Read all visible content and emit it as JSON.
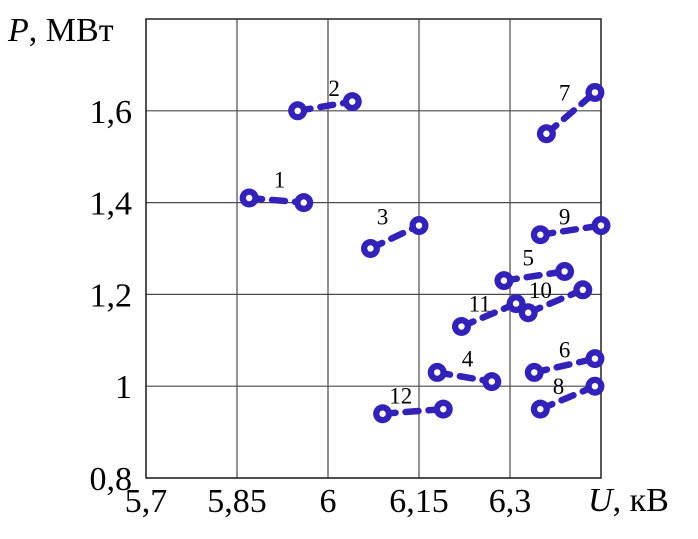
{
  "chart_data": {
    "type": "scatter",
    "title": "",
    "xlabel_var": "U",
    "xlabel_unit": ", кВ",
    "ylabel_var": "P",
    "ylabel_unit": ", МВт",
    "xlim": [
      5.7,
      6.45
    ],
    "ylim": [
      0.8,
      1.8
    ],
    "grid": true,
    "x_ticks": [
      {
        "value": 5.7,
        "label": "5,7"
      },
      {
        "value": 5.85,
        "label": "5,85"
      },
      {
        "value": 6.0,
        "label": "6"
      },
      {
        "value": 6.15,
        "label": "6,15"
      },
      {
        "value": 6.3,
        "label": "6,3"
      }
    ],
    "y_ticks": [
      {
        "value": 0.8,
        "label": "0,8"
      },
      {
        "value": 1.0,
        "label": "1"
      },
      {
        "value": 1.2,
        "label": "1,2"
      },
      {
        "value": 1.4,
        "label": "1,4"
      },
      {
        "value": 1.6,
        "label": "1,6"
      }
    ],
    "series": [
      {
        "label": "1",
        "points": [
          [
            5.87,
            1.41
          ],
          [
            5.96,
            1.4
          ]
        ],
        "label_pos": [
          5.92,
          1.45
        ]
      },
      {
        "label": "2",
        "points": [
          [
            5.95,
            1.6
          ],
          [
            6.04,
            1.62
          ]
        ],
        "label_pos": [
          6.01,
          1.65
        ]
      },
      {
        "label": "3",
        "points": [
          [
            6.07,
            1.3
          ],
          [
            6.15,
            1.35
          ]
        ],
        "label_pos": [
          6.09,
          1.37
        ]
      },
      {
        "label": "4",
        "points": [
          [
            6.18,
            1.03
          ],
          [
            6.27,
            1.01
          ]
        ],
        "label_pos": [
          6.23,
          1.06
        ]
      },
      {
        "label": "5",
        "points": [
          [
            6.29,
            1.23
          ],
          [
            6.39,
            1.25
          ]
        ],
        "label_pos": [
          6.33,
          1.28
        ]
      },
      {
        "label": "6",
        "points": [
          [
            6.34,
            1.03
          ],
          [
            6.44,
            1.06
          ]
        ],
        "label_pos": [
          6.39,
          1.08
        ]
      },
      {
        "label": "7",
        "points": [
          [
            6.36,
            1.55
          ],
          [
            6.44,
            1.64
          ]
        ],
        "label_pos": [
          6.39,
          1.64
        ]
      },
      {
        "label": "8",
        "points": [
          [
            6.35,
            0.95
          ],
          [
            6.44,
            1.0
          ]
        ],
        "label_pos": [
          6.38,
          1.0
        ]
      },
      {
        "label": "9",
        "points": [
          [
            6.35,
            1.33
          ],
          [
            6.45,
            1.35
          ]
        ],
        "label_pos": [
          6.39,
          1.37
        ]
      },
      {
        "label": "10",
        "points": [
          [
            6.33,
            1.16
          ],
          [
            6.42,
            1.21
          ]
        ],
        "label_pos": [
          6.35,
          1.21
        ]
      },
      {
        "label": "11",
        "points": [
          [
            6.22,
            1.13
          ],
          [
            6.31,
            1.18
          ]
        ],
        "label_pos": [
          6.25,
          1.18
        ]
      },
      {
        "label": "12",
        "points": [
          [
            6.09,
            0.94
          ],
          [
            6.19,
            0.95
          ]
        ],
        "label_pos": [
          6.12,
          0.98
        ]
      }
    ],
    "colors": {
      "marker": "#3322b8",
      "marker_hole": "#ffffff",
      "grid": "#4a4a4a",
      "border": "#222222",
      "text": "#000000"
    }
  }
}
